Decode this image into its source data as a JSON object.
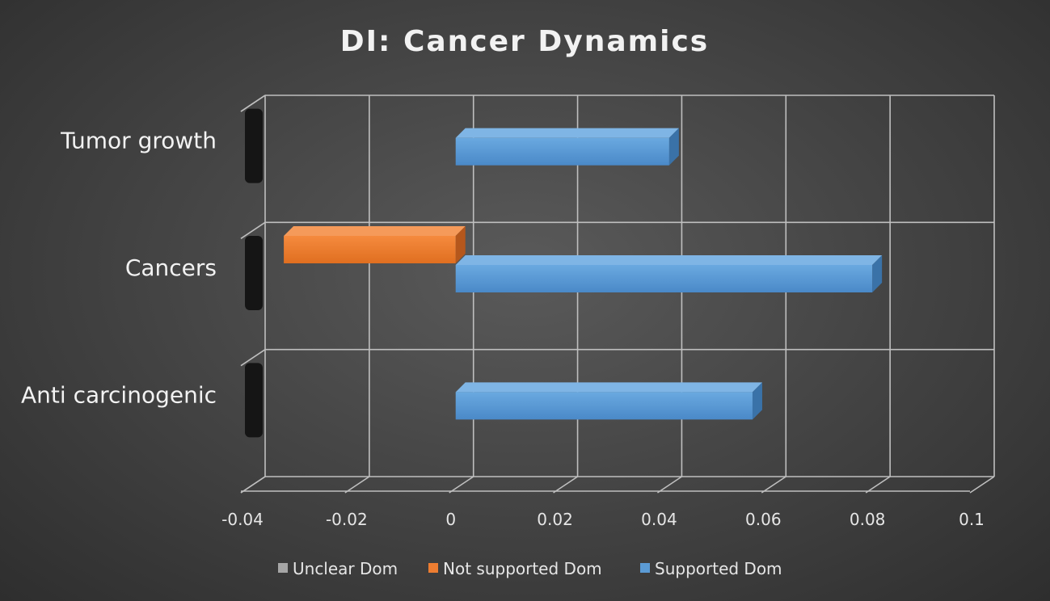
{
  "chart_data": {
    "type": "bar",
    "orientation": "horizontal",
    "title": "DI: Cancer Dynamics",
    "categories": [
      "Anti carcinogenic",
      "Cancers",
      "Tumor growth"
    ],
    "series": [
      {
        "name": "Unclear Dom",
        "color": "#a6a6a6",
        "values": [
          0,
          0,
          0
        ]
      },
      {
        "name": "Not supported Dom",
        "color": "#ed7d31",
        "values": [
          0,
          -0.033,
          0
        ]
      },
      {
        "name": "Supported Dom",
        "color": "#5b9bd5",
        "values": [
          0.057,
          0.08,
          0.041
        ]
      }
    ],
    "xlim": [
      -0.04,
      0.1
    ],
    "xticks": [
      "-0.04",
      "-0.02",
      "0",
      "0.02",
      "0.04",
      "0.06",
      "0.08",
      "0.1"
    ],
    "grid": true,
    "legend_position": "bottom"
  }
}
